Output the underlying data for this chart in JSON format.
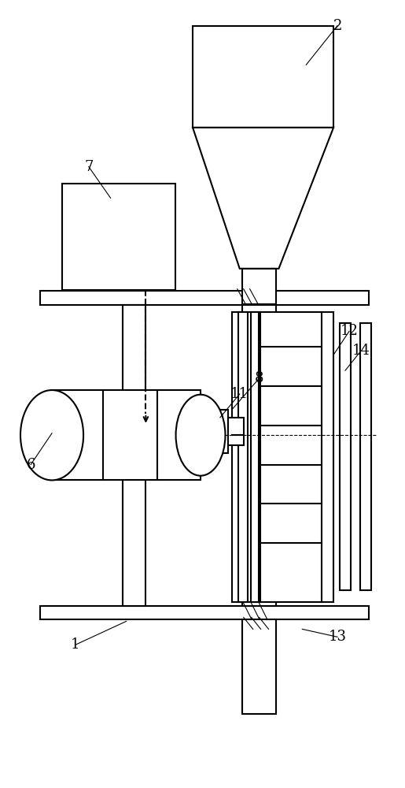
{
  "bg_color": "#ffffff",
  "line_color": "#000000",
  "lw": 1.5,
  "tlw": 0.8
}
